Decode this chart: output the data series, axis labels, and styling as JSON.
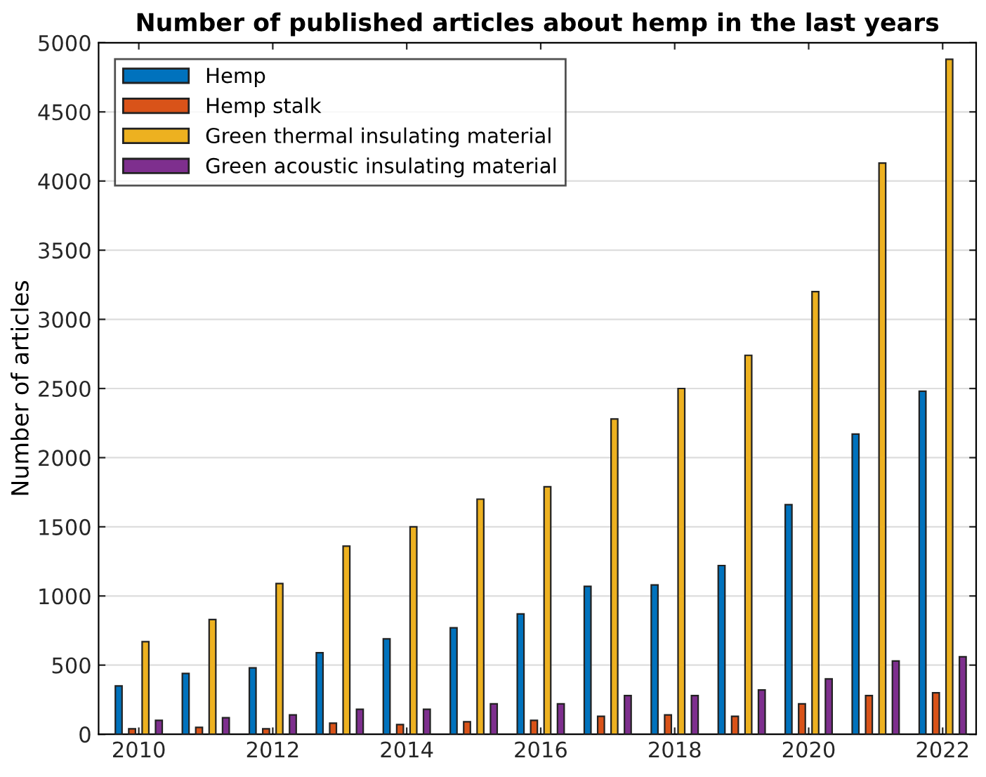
{
  "chart_data": {
    "type": "bar",
    "title": "Number of published articles about hemp in the last years",
    "ylabel": "Number of articles",
    "x": [
      2010,
      2011,
      2012,
      2013,
      2014,
      2015,
      2016,
      2017,
      2018,
      2019,
      2020,
      2021,
      2022
    ],
    "series": [
      {
        "name": "Hemp",
        "color": "#0072bd",
        "values": [
          350,
          440,
          480,
          590,
          690,
          770,
          870,
          1070,
          1080,
          1220,
          1660,
          2170,
          2480
        ]
      },
      {
        "name": "Hemp stalk",
        "color": "#d95319",
        "values": [
          40,
          50,
          40,
          80,
          70,
          90,
          100,
          130,
          140,
          130,
          220,
          280,
          300
        ]
      },
      {
        "name": "Green thermal insulating material",
        "color": "#edb120",
        "values": [
          670,
          830,
          1090,
          1360,
          1500,
          1700,
          1790,
          2280,
          2500,
          2740,
          3200,
          4130,
          4880
        ]
      },
      {
        "name": "Green acoustic insulating material",
        "color": "#7e2f8e",
        "values": [
          100,
          120,
          140,
          180,
          180,
          220,
          220,
          280,
          280,
          320,
          400,
          530,
          560
        ]
      }
    ],
    "xlim": [
      2009.4,
      2022.5
    ],
    "xticks": [
      2010,
      2012,
      2014,
      2016,
      2018,
      2020,
      2022
    ],
    "ylim": [
      0,
      5000
    ],
    "yticks": [
      0,
      500,
      1000,
      1500,
      2000,
      2500,
      3000,
      3500,
      4000,
      4500,
      5000
    ],
    "grid": "y",
    "legend": "top left"
  }
}
